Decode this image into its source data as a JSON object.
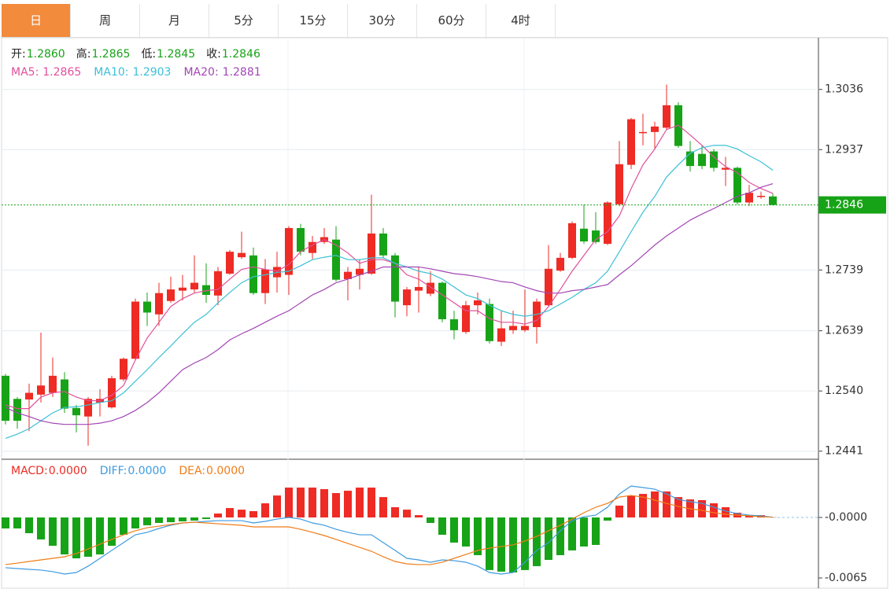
{
  "tabs": [
    "日",
    "周",
    "月",
    "5分",
    "15分",
    "30分",
    "60分",
    "4时"
  ],
  "active_tab": 0,
  "chart_data": [
    {
      "type": "candlestick",
      "up_color": "#ee2b24",
      "down_color": "#17a317",
      "ylim": [
        1.2429,
        1.3121
      ],
      "yticks": [
        1.2441,
        {
          "value": 1.254,
          "label": "1.2540"
        },
        1.2639,
        1.2739,
        1.2937,
        1.3036
      ],
      "grid": true,
      "readout": [
        {
          "name": "开:",
          "value": {
            "value": 1.286,
            "label": "1.2860"
          }
        },
        {
          "name": "高:",
          "value": 1.2865
        },
        {
          "name": "低:",
          "value": 1.2845
        },
        {
          "name": "收:",
          "value": 1.2846
        }
      ],
      "open": [
        1.2565,
        1.2527,
        1.2526,
        1.2534,
        1.2537,
        1.2559,
        1.2512,
        1.2498,
        1.2521,
        1.2513,
        1.2559,
        1.2593,
        1.2687,
        1.2666,
        1.2688,
        1.2705,
        1.2707,
        1.2714,
        1.2697,
        1.2733,
        1.276,
        1.2763,
        1.2701,
        1.2727,
        1.2731,
        1.2808,
        1.2767,
        1.2785,
        1.2789,
        1.2724,
        1.2731,
        1.2733,
        1.2799,
        1.2763,
        1.2681,
        1.2705,
        1.27,
        1.2718,
        1.2658,
        1.2637,
        1.2681,
        1.2683,
        1.2621,
        1.264,
        1.264,
        1.2645,
        1.2681,
        1.2738,
        1.2759,
        1.2807,
        1.2804,
        1.2782,
        1.2847,
        1.2912,
        1.2964,
        1.2966,
        1.2973,
        1.301,
        1.2934,
        1.293,
        1.2934,
        1.2904,
        1.2907,
        1.285,
        1.2859,
        1.286
      ],
      "high": [
        1.2568,
        1.253,
        1.2552,
        1.2636,
        1.2595,
        1.2571,
        1.2517,
        1.253,
        1.2543,
        1.2565,
        1.2595,
        1.2692,
        1.2702,
        1.2718,
        1.2728,
        1.2731,
        1.2763,
        1.275,
        1.2744,
        1.2772,
        1.2802,
        1.2776,
        1.2757,
        1.2769,
        1.2811,
        1.2815,
        1.2795,
        1.2808,
        1.2811,
        1.2744,
        1.2757,
        1.2863,
        1.2808,
        1.2767,
        1.2711,
        1.2744,
        1.2737,
        1.272,
        1.2672,
        1.2688,
        1.2702,
        1.2692,
        1.2672,
        1.2672,
        1.2707,
        1.2692,
        1.278,
        1.2767,
        1.2819,
        1.2847,
        1.2834,
        1.2852,
        1.2951,
        1.2989,
        1.2996,
        1.2983,
        1.3044,
        1.3015,
        1.2951,
        1.2944,
        1.2938,
        1.2925,
        1.2909,
        1.2879,
        1.2868,
        1.2865
      ],
      "low": [
        1.2485,
        1.2478,
        1.2474,
        1.2521,
        1.253,
        1.2504,
        1.2472,
        1.245,
        1.2498,
        1.2511,
        1.2556,
        1.2591,
        1.2647,
        1.2647,
        1.2685,
        1.2689,
        1.2702,
        1.2685,
        1.2681,
        1.2731,
        1.2757,
        1.2698,
        1.2683,
        1.2702,
        1.2698,
        1.2763,
        1.2757,
        1.2782,
        1.272,
        1.2689,
        1.2707,
        1.2731,
        1.2759,
        1.2661,
        1.2663,
        1.2669,
        1.2696,
        1.2653,
        1.2625,
        1.2634,
        1.2666,
        1.2618,
        1.2614,
        1.2634,
        1.2637,
        1.2618,
        1.2679,
        1.2736,
        1.2757,
        1.2782,
        1.2782,
        1.278,
        1.2844,
        1.2905,
        1.2944,
        1.2938,
        1.297,
        1.294,
        1.2901,
        1.2905,
        1.2901,
        1.2877,
        1.2847,
        1.2844,
        1.2856,
        1.2845
      ],
      "close": [
        1.2491,
        1.2491,
        1.2537,
        1.2549,
        1.2565,
        1.2511,
        1.25,
        1.2527,
        1.2527,
        1.2561,
        1.2593,
        1.2687,
        1.2669,
        1.2701,
        1.2707,
        1.271,
        1.2718,
        1.2698,
        1.2737,
        1.2769,
        1.2767,
        1.2701,
        1.274,
        1.2744,
        1.2808,
        1.2769,
        1.2785,
        1.2793,
        1.2723,
        1.2736,
        1.2741,
        1.2799,
        1.2763,
        1.2687,
        1.2707,
        1.2711,
        1.2718,
        1.2658,
        1.264,
        1.2681,
        1.2689,
        1.2622,
        1.2643,
        1.2647,
        1.2647,
        1.2687,
        1.2741,
        1.2759,
        1.2816,
        1.2786,
        1.2785,
        1.285,
        1.2913,
        1.2987,
        1.2966,
        1.2975,
        1.301,
        1.2943,
        1.291,
        1.291,
        1.2907,
        1.2907,
        1.285,
        1.2866,
        1.2861,
        1.2846
      ],
      "series": [
        {
          "name": "MA5:",
          "color": "#e0509a",
          "values": [
            1.2517,
            1.2511,
            1.2511,
            1.253,
            1.2537,
            1.2539,
            1.253,
            1.2524,
            1.2524,
            1.2533,
            1.2549,
            1.2591,
            1.2627,
            1.2653,
            1.2679,
            1.2692,
            1.2701,
            1.2705,
            1.2707,
            1.2724,
            1.274,
            1.2744,
            1.274,
            1.2737,
            1.2748,
            1.2769,
            1.278,
            1.2789,
            1.278,
            1.2767,
            1.275,
            1.2756,
            1.2756,
            1.275,
            1.2731,
            1.2724,
            1.2711,
            1.2698,
            1.2685,
            1.2672,
            1.2672,
            1.2659,
            1.2653,
            1.2653,
            1.265,
            1.2656,
            1.2679,
            1.2707,
            1.2737,
            1.2763,
            1.2789,
            1.2802,
            1.2828,
            1.2873,
            1.2912,
            1.2938,
            1.297,
            1.2977,
            1.2961,
            1.2944,
            1.2925,
            1.2909,
            1.2899,
            1.2883,
            1.2873,
            1.2865
          ]
        },
        {
          "name": "MA10:",
          "color": "#3cc0d6",
          "values": [
            1.2462,
            1.2469,
            1.2478,
            1.2491,
            1.2504,
            1.2513,
            1.2514,
            1.2517,
            1.2521,
            1.2524,
            1.2537,
            1.2556,
            1.2575,
            1.2595,
            1.2614,
            1.2634,
            1.2653,
            1.2666,
            1.2685,
            1.2702,
            1.2718,
            1.2728,
            1.2731,
            1.2735,
            1.2737,
            1.2746,
            1.2756,
            1.276,
            1.2763,
            1.2756,
            1.2756,
            1.2759,
            1.2759,
            1.275,
            1.2744,
            1.2737,
            1.2733,
            1.2724,
            1.2711,
            1.2698,
            1.2692,
            1.2681,
            1.2672,
            1.2666,
            1.2663,
            1.2666,
            1.2672,
            1.2683,
            1.2694,
            1.2707,
            1.2718,
            1.2737,
            1.2769,
            1.2802,
            1.2834,
            1.286,
            1.2892,
            1.2912,
            1.2931,
            1.294,
            1.2944,
            1.2944,
            1.2938,
            1.2927,
            1.2917,
            1.2903
          ]
        },
        {
          "name": "MA20:",
          "color": "#a246b4",
          "values": [
            1.2513,
            1.2504,
            1.2498,
            1.2491,
            1.2487,
            1.2485,
            1.2485,
            1.2485,
            1.2487,
            1.2491,
            1.2498,
            1.2508,
            1.2521,
            1.2537,
            1.2556,
            1.2575,
            1.2586,
            1.2595,
            1.2608,
            1.2624,
            1.2634,
            1.2643,
            1.2653,
            1.2663,
            1.2672,
            1.2685,
            1.2698,
            1.2707,
            1.2718,
            1.2724,
            1.2731,
            1.2737,
            1.2744,
            1.2744,
            1.2744,
            1.2744,
            1.2741,
            1.2737,
            1.2733,
            1.2731,
            1.2728,
            1.2724,
            1.272,
            1.2718,
            1.2711,
            1.2705,
            1.2701,
            1.2701,
            1.2705,
            1.2707,
            1.2711,
            1.2715,
            1.2731,
            1.2746,
            1.2763,
            1.278,
            1.2795,
            1.2808,
            1.2821,
            1.2831,
            1.284,
            1.285,
            1.286,
            1.2866,
            1.2875,
            1.2881
          ]
        }
      ]
    },
    {
      "type": "macd",
      "up_color": "#ee2b24",
      "down_color": "#17a317",
      "ylim": [
        -0.0076,
        0.006
      ],
      "yticks": [
        {
          "value": 0,
          "label": "-0.0000"
        },
        -0.0065
      ],
      "series": [
        {
          "name": "MACD:",
          "style": "bar",
          "color": "#ee2b24",
          "readout": {
            "value": 0,
            "label": "0.0000"
          },
          "values": [
            -0.00118,
            -0.00118,
            -0.00169,
            -0.00236,
            -0.00304,
            -0.00397,
            -0.00439,
            -0.00422,
            -0.00397,
            -0.00304,
            -0.00186,
            -0.00118,
            -0.00084,
            -0.00059,
            -0.00051,
            -0.00042,
            -0.00034,
            -0.00017,
            0.00042,
            0.00101,
            0.00084,
            0.00068,
            0.00152,
            0.00236,
            0.00321,
            0.00321,
            0.00321,
            0.00304,
            0.00262,
            0.00287,
            0.00321,
            0.00321,
            0.00219,
            0.0011,
            0.00084,
            0.00025,
            -0.00059,
            -0.00186,
            -0.0027,
            -0.00312,
            -0.00405,
            -0.00565,
            -0.00582,
            -0.00591,
            -0.00565,
            -0.00523,
            -0.00456,
            -0.00405,
            -0.00354,
            -0.00312,
            -0.00295,
            -0.00034,
            0.00127,
            0.00236,
            0.00253,
            0.00279,
            0.00279,
            0.00219,
            0.00194,
            0.00186,
            0.00152,
            0.0011,
            0.00051,
            0.00025,
            0.00025,
            3e-05
          ]
        },
        {
          "name": "DIFF:",
          "style": "line",
          "color": "#3d9be0",
          "readout": {
            "value": 0,
            "label": "0.0000"
          },
          "values": [
            -0.0054,
            -0.00549,
            -0.00557,
            -0.00565,
            -0.00582,
            -0.00608,
            -0.00591,
            -0.00523,
            -0.00439,
            -0.00354,
            -0.0027,
            -0.00186,
            -0.0016,
            -0.00118,
            -0.00084,
            -0.00059,
            -0.00051,
            -0.00042,
            -0.00034,
            -0.00034,
            -0.00034,
            -0.00059,
            -0.00042,
            -0.00017,
            0,
            -0.00017,
            -0.00059,
            -0.00084,
            -0.00127,
            -0.0016,
            -0.00186,
            -0.00186,
            -0.0027,
            -0.00354,
            -0.00439,
            -0.00456,
            -0.00481,
            -0.00456,
            -0.00464,
            -0.00481,
            -0.00523,
            -0.00591,
            -0.00608,
            -0.00591,
            -0.00481,
            -0.00354,
            -0.0027,
            -0.00143,
            -0.00034,
            8e-05,
            0.00025,
            0.0011,
            0.00253,
            0.00338,
            0.00321,
            0.00304,
            0.00253,
            0.00194,
            0.00169,
            0.00152,
            0.0011,
            0.00068,
            0.00042,
            0.00025,
            0.00017,
            3e-05
          ]
        },
        {
          "name": "DEA:",
          "style": "line",
          "color": "#f07d18",
          "readout": {
            "value": 0,
            "label": "0.0000"
          },
          "values": [
            -0.00506,
            -0.0049,
            -0.00473,
            -0.00456,
            -0.00439,
            -0.00422,
            -0.00388,
            -0.00338,
            -0.00287,
            -0.00236,
            -0.00186,
            -0.00143,
            -0.0011,
            -0.00093,
            -0.00076,
            -0.00059,
            -0.00051,
            -0.00059,
            -0.00068,
            -0.00076,
            -0.00084,
            -0.00101,
            -0.00101,
            -0.00101,
            -0.00101,
            -0.00127,
            -0.0016,
            -0.00194,
            -0.00236,
            -0.00279,
            -0.00321,
            -0.00363,
            -0.00422,
            -0.00473,
            -0.00498,
            -0.00506,
            -0.00506,
            -0.00481,
            -0.00439,
            -0.00397,
            -0.00354,
            -0.00329,
            -0.00312,
            -0.00295,
            -0.00253,
            -0.00203,
            -0.00143,
            -0.00084,
            -0.00017,
            0.00051,
            0.0011,
            0.00152,
            0.00219,
            0.00236,
            0.00219,
            0.00186,
            0.00152,
            0.00118,
            0.00093,
            0.00076,
            0.00051,
            0.00034,
            0.00025,
            0.00017,
            8e-05,
            3e-05
          ]
        }
      ]
    }
  ]
}
